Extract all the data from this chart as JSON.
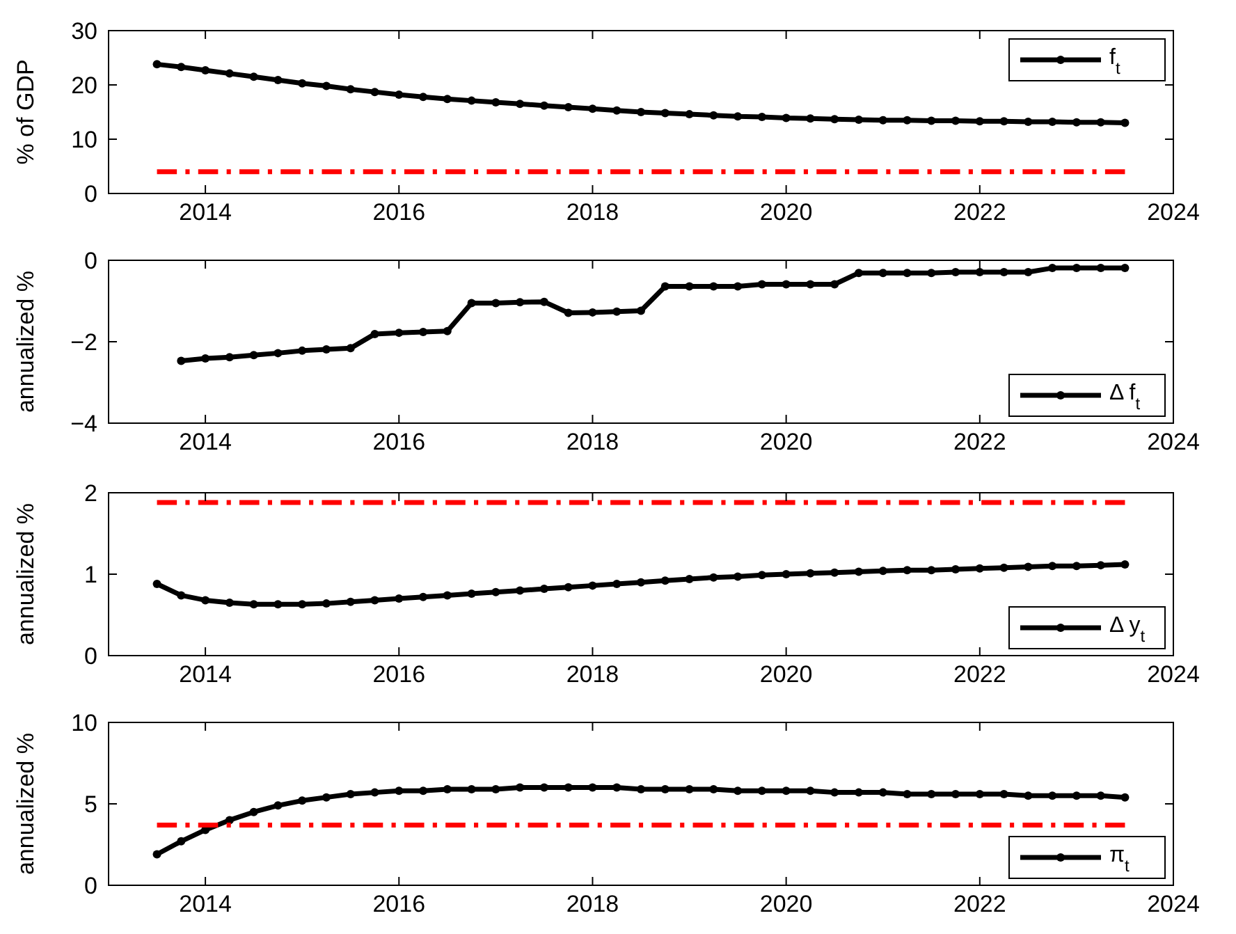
{
  "chart_data": [
    {
      "type": "line",
      "ylabel": "% of GDP",
      "xlim": [
        2013,
        2024
      ],
      "xticks": [
        2014,
        2016,
        2018,
        2020,
        2022,
        2024
      ],
      "ylim": [
        0,
        30
      ],
      "yticks": [
        0,
        10,
        20,
        30
      ],
      "legend": "top right",
      "marker": "circle",
      "x": [
        2013.5,
        2013.75,
        2014,
        2014.25,
        2014.5,
        2014.75,
        2015,
        2015.25,
        2015.5,
        2015.75,
        2016,
        2016.25,
        2016.5,
        2016.75,
        2017,
        2017.25,
        2017.5,
        2017.75,
        2018,
        2018.25,
        2018.5,
        2018.75,
        2019,
        2019.25,
        2019.5,
        2019.75,
        2020,
        2020.25,
        2020.5,
        2020.75,
        2021,
        2021.25,
        2021.5,
        2021.75,
        2022,
        2022.25,
        2022.5,
        2022.75,
        2023,
        2023.25,
        2023.5
      ],
      "series": [
        {
          "name": "f$_{t}$",
          "color": "#000000",
          "values": [
            23.8,
            23.3,
            22.7,
            22.1,
            21.5,
            20.9,
            20.3,
            19.8,
            19.2,
            18.7,
            18.2,
            17.8,
            17.4,
            17.1,
            16.8,
            16.5,
            16.2,
            15.9,
            15.6,
            15.3,
            15.0,
            14.8,
            14.6,
            14.4,
            14.2,
            14.1,
            13.9,
            13.8,
            13.7,
            13.6,
            13.5,
            13.5,
            13.4,
            13.4,
            13.3,
            13.3,
            13.2,
            13.2,
            13.1,
            13.1,
            13.0
          ]
        },
        {
          "color": "#ff0000",
          "x": [
            2013.5,
            2023.5
          ],
          "values": [
            4,
            4
          ],
          "marker": "none",
          "line_style": "dashed"
        }
      ]
    },
    {
      "type": "line",
      "ylabel": "annualized %",
      "xlim": [
        2013,
        2024
      ],
      "xticks": [
        2014,
        2016,
        2018,
        2020,
        2022,
        2024
      ],
      "ylim": [
        -4,
        0
      ],
      "yticks": [
        -4,
        -2,
        0
      ],
      "legend": "bottom right",
      "marker": "circle",
      "series": [
        {
          "name": "Δ f$_{t}$",
          "color": "#000000",
          "x": [
            2013.75,
            2014,
            2014.25,
            2014.5,
            2014.75,
            2015,
            2015.25,
            2015.5,
            2015.75,
            2016,
            2016.25,
            2016.5,
            2016.75,
            2017,
            2017.25,
            2017.5,
            2017.75,
            2018,
            2018.25,
            2018.5,
            2018.75,
            2019,
            2019.25,
            2019.5,
            2019.75,
            2020,
            2020.25,
            2020.5,
            2020.75,
            2021,
            2021.25,
            2021.5,
            2021.75,
            2022,
            2022.25,
            2022.5,
            2022.75,
            2023,
            2023.25,
            2023.5
          ],
          "values": [
            -2.47,
            -2.41,
            -2.38,
            -2.33,
            -2.28,
            -2.22,
            -2.19,
            -2.16,
            -1.81,
            -1.78,
            -1.76,
            -1.74,
            -1.05,
            -1.05,
            -1.03,
            -1.02,
            -1.29,
            -1.28,
            -1.26,
            -1.24,
            -0.64,
            -0.64,
            -0.64,
            -0.64,
            -0.59,
            -0.59,
            -0.59,
            -0.59,
            -0.31,
            -0.31,
            -0.31,
            -0.31,
            -0.29,
            -0.29,
            -0.29,
            -0.29,
            -0.19,
            -0.19,
            -0.19,
            -0.19
          ]
        }
      ]
    },
    {
      "type": "line",
      "ylabel": "annualized %",
      "xlim": [
        2013,
        2024
      ],
      "xticks": [
        2014,
        2016,
        2018,
        2020,
        2022,
        2024
      ],
      "ylim": [
        0,
        2
      ],
      "yticks": [
        0,
        1,
        2
      ],
      "legend": "bottom right",
      "marker": "circle",
      "x": [
        2013.5,
        2013.75,
        2014,
        2014.25,
        2014.5,
        2014.75,
        2015,
        2015.25,
        2015.5,
        2015.75,
        2016,
        2016.25,
        2016.5,
        2016.75,
        2017,
        2017.25,
        2017.5,
        2017.75,
        2018,
        2018.25,
        2018.5,
        2018.75,
        2019,
        2019.25,
        2019.5,
        2019.75,
        2020,
        2020.25,
        2020.5,
        2020.75,
        2021,
        2021.25,
        2021.5,
        2021.75,
        2022,
        2022.25,
        2022.5,
        2022.75,
        2023,
        2023.25,
        2023.5
      ],
      "series": [
        {
          "name": "Δ y$_{t}$",
          "color": "#000000",
          "values": [
            0.88,
            0.74,
            0.68,
            0.65,
            0.63,
            0.63,
            0.63,
            0.64,
            0.66,
            0.68,
            0.7,
            0.72,
            0.74,
            0.76,
            0.78,
            0.8,
            0.82,
            0.84,
            0.86,
            0.88,
            0.9,
            0.92,
            0.94,
            0.96,
            0.97,
            0.99,
            1.0,
            1.01,
            1.02,
            1.03,
            1.04,
            1.05,
            1.05,
            1.06,
            1.07,
            1.08,
            1.09,
            1.1,
            1.1,
            1.11,
            1.12
          ]
        },
        {
          "color": "#ff0000",
          "x": [
            2013.5,
            2023.5
          ],
          "values": [
            1.88,
            1.88
          ],
          "marker": "none",
          "line_style": "dashed"
        }
      ]
    },
    {
      "type": "line",
      "ylabel": "annualized %",
      "xlim": [
        2013,
        2024
      ],
      "xticks": [
        2014,
        2016,
        2018,
        2020,
        2022,
        2024
      ],
      "ylim": [
        0,
        10
      ],
      "yticks": [
        0,
        5,
        10
      ],
      "legend": "bottom right",
      "marker": "circle",
      "x": [
        2013.5,
        2013.75,
        2014,
        2014.25,
        2014.5,
        2014.75,
        2015,
        2015.25,
        2015.5,
        2015.75,
        2016,
        2016.25,
        2016.5,
        2016.75,
        2017,
        2017.25,
        2017.5,
        2017.75,
        2018,
        2018.25,
        2018.5,
        2018.75,
        2019,
        2019.25,
        2019.5,
        2019.75,
        2020,
        2020.25,
        2020.5,
        2020.75,
        2021,
        2021.25,
        2021.5,
        2021.75,
        2022,
        2022.25,
        2022.5,
        2022.75,
        2023,
        2023.25,
        2023.5
      ],
      "series": [
        {
          "name": "π$_{t}$",
          "color": "#000000",
          "values": [
            1.9,
            2.7,
            3.4,
            4.0,
            4.5,
            4.9,
            5.2,
            5.4,
            5.6,
            5.7,
            5.8,
            5.8,
            5.9,
            5.9,
            5.9,
            6.0,
            6.0,
            6.0,
            6.0,
            6.0,
            5.9,
            5.9,
            5.9,
            5.9,
            5.8,
            5.8,
            5.8,
            5.8,
            5.7,
            5.7,
            5.7,
            5.6,
            5.6,
            5.6,
            5.6,
            5.6,
            5.5,
            5.5,
            5.5,
            5.5,
            5.4
          ]
        },
        {
          "color": "#ff0000",
          "x": [
            2013.5,
            2023.5
          ],
          "values": [
            3.7,
            3.7
          ],
          "marker": "none",
          "line_style": "dashed"
        }
      ]
    }
  ]
}
